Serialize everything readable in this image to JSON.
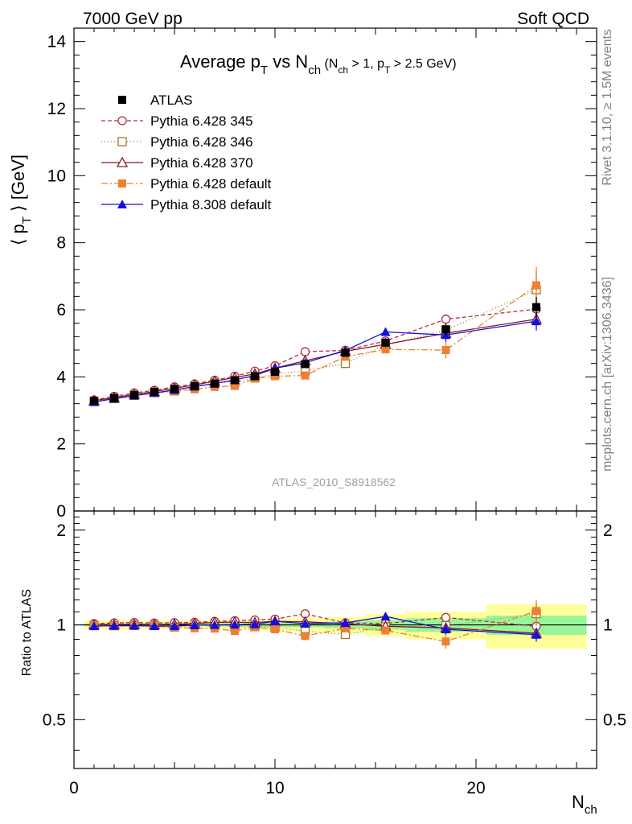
{
  "header": {
    "left": "7000 GeV pp",
    "right": "Soft QCD"
  },
  "side_labels": {
    "rivet": "Rivet 3.1.10, ≥ 1.5M events",
    "mcplots": "mcplots.cern.ch [arXiv:1306.3436]"
  },
  "chart_data": {
    "type": "scatter",
    "title_main": "Average p",
    "title_sub_T": "T",
    "title_vs": " vs N",
    "title_sub_ch": "ch",
    "title_cuts_a": " (N",
    "title_cuts_b": " > 1, p",
    "title_cuts_c": " > 2.5 GeV)",
    "watermark": "ATLAS_2010_S8918562",
    "ylabel_main": "⟨ p",
    "ylabel_sub": "T",
    "ylabel_end": " ⟩ [GeV]",
    "ylabel_ratio": "Ratio to ATLAS",
    "xlabel_main": "N",
    "xlabel_sub": "ch",
    "xlim": [
      0,
      26
    ],
    "ylim": [
      0,
      14.4
    ],
    "ratio_ylim": [
      0.35,
      2.3
    ],
    "x_ticks": [
      "0",
      "10",
      "20"
    ],
    "y_ticks": [
      "0",
      "2",
      "4",
      "6",
      "8",
      "10",
      "12",
      "14"
    ],
    "ratio_ticks": [
      "0.5",
      "1",
      "2"
    ],
    "x": [
      1,
      2,
      3,
      4,
      5,
      6,
      7,
      8,
      9,
      10,
      11.5,
      13.5,
      15.5,
      18.5,
      23
    ],
    "x_bins": [
      [
        0.5,
        1.5
      ],
      [
        1.5,
        2.5
      ],
      [
        2.5,
        3.5
      ],
      [
        3.5,
        4.5
      ],
      [
        4.5,
        5.5
      ],
      [
        5.5,
        6.5
      ],
      [
        6.5,
        7.5
      ],
      [
        7.5,
        8.5
      ],
      [
        8.5,
        9.5
      ],
      [
        9.5,
        10.5
      ],
      [
        10.5,
        12.5
      ],
      [
        12.5,
        14.5
      ],
      [
        14.5,
        16.5
      ],
      [
        16.5,
        20.5
      ],
      [
        20.5,
        25.5
      ]
    ],
    "data": {
      "name": "ATLAS",
      "values": [
        3.28,
        3.37,
        3.46,
        3.55,
        3.64,
        3.72,
        3.8,
        3.9,
        4.02,
        4.15,
        4.38,
        4.72,
        5.02,
        5.42,
        6.08
      ],
      "errors": [
        0.03,
        0.03,
        0.03,
        0.03,
        0.04,
        0.04,
        0.04,
        0.05,
        0.05,
        0.06,
        0.07,
        0.1,
        0.14,
        0.18,
        0.3
      ],
      "color": "#000000"
    },
    "band": {
      "stat": [
        0.01,
        0.01,
        0.01,
        0.01,
        0.01,
        0.01,
        0.012,
        0.012,
        0.013,
        0.015,
        0.018,
        0.025,
        0.035,
        0.05,
        0.07
      ],
      "total": [
        0.03,
        0.03,
        0.03,
        0.03,
        0.03,
        0.03,
        0.03,
        0.03,
        0.035,
        0.04,
        0.05,
        0.06,
        0.08,
        0.1,
        0.16
      ],
      "stat_color": "#99f599",
      "total_color": "#ffff99"
    },
    "series": [
      {
        "name": "Pythia 6.428 345",
        "color": "#b03040",
        "marker": "circle-open",
        "dash": "5,3",
        "values": [
          3.31,
          3.42,
          3.52,
          3.6,
          3.7,
          3.79,
          3.9,
          4.02,
          4.17,
          4.33,
          4.75,
          4.79,
          5.07,
          5.72,
          6.02
        ],
        "errors": [
          0.02,
          0.02,
          0.02,
          0.02,
          0.02,
          0.03,
          0.03,
          0.03,
          0.04,
          0.04,
          0.05,
          0.06,
          0.1,
          0.15,
          0.25
        ]
      },
      {
        "name": "Pythia 6.428 346",
        "color": "#9a7a30",
        "marker": "square-open",
        "dash": "1,3",
        "values": [
          3.27,
          3.35,
          3.45,
          3.54,
          3.58,
          3.72,
          3.82,
          3.84,
          3.97,
          4.08,
          4.18,
          4.4,
          4.95,
          5.39,
          6.6
        ],
        "errors": [
          0.02,
          0.02,
          0.02,
          0.02,
          0.02,
          0.03,
          0.03,
          0.03,
          0.04,
          0.04,
          0.05,
          0.07,
          0.1,
          0.15,
          0.55
        ]
      },
      {
        "name": "Pythia 6.428 370",
        "color": "#8b1020",
        "marker": "triangle-open",
        "dash": "",
        "values": [
          3.29,
          3.38,
          3.48,
          3.56,
          3.66,
          3.76,
          3.87,
          3.98,
          4.09,
          4.26,
          4.48,
          4.76,
          4.97,
          5.3,
          5.72
        ],
        "errors": [
          0.02,
          0.02,
          0.02,
          0.02,
          0.02,
          0.03,
          0.03,
          0.03,
          0.04,
          0.04,
          0.05,
          0.06,
          0.1,
          0.15,
          0.2
        ]
      },
      {
        "name": "Pythia 6.428 default",
        "color": "#f07f30",
        "marker": "square-filled",
        "dash": "8,3,2,3",
        "values": [
          3.27,
          3.35,
          3.43,
          3.52,
          3.57,
          3.63,
          3.7,
          3.73,
          3.95,
          4.02,
          4.04,
          4.6,
          4.82,
          4.8,
          6.73
        ],
        "errors": [
          0.02,
          0.02,
          0.02,
          0.02,
          0.02,
          0.03,
          0.03,
          0.03,
          0.04,
          0.04,
          0.05,
          0.08,
          0.12,
          0.25,
          0.55
        ]
      },
      {
        "name": "Pythia 8.308 default",
        "color": "#1010dd",
        "marker": "triangle-filled",
        "dash": "",
        "values": [
          3.25,
          3.35,
          3.44,
          3.52,
          3.61,
          3.71,
          3.8,
          3.91,
          4.04,
          4.26,
          4.42,
          4.79,
          5.34,
          5.25,
          5.66
        ],
        "errors": [
          0.02,
          0.02,
          0.02,
          0.02,
          0.02,
          0.03,
          0.03,
          0.03,
          0.04,
          0.04,
          0.05,
          0.07,
          0.12,
          0.2,
          0.28
        ]
      }
    ]
  }
}
